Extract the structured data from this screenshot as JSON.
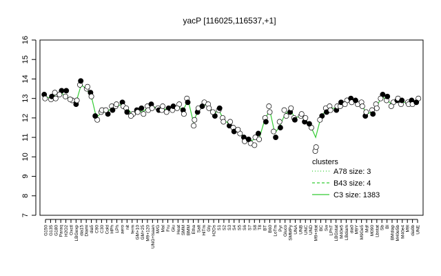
{
  "chart_data": {
    "type": "line",
    "title": "yacP [116025,116537,+1]",
    "xlabel": "",
    "ylabel": "",
    "ylim": [
      7,
      16
    ],
    "yticks": [
      7,
      8,
      9,
      10,
      11,
      12,
      13,
      14,
      15,
      16
    ],
    "x_tick_labels": [
      "G150",
      "G135",
      "G180",
      "Paraq",
      "H2O2",
      "Oxctl",
      "LBGexp",
      "dia15",
      "Diami",
      "dia5",
      "C90",
      "C30",
      "Cold",
      "HPh",
      "LPh",
      "aero",
      "nit",
      "ferm",
      "GM+10",
      "GM+25",
      "M9+120",
      "UNG+Isaan",
      "M/G",
      "Mal",
      "Fru",
      "Glu",
      "Heat",
      "SMM",
      "BMM",
      "Etha",
      "Salt",
      "HiTm",
      "Gly",
      "H2Os",
      "S1",
      "S2",
      "S3",
      "S4",
      "S5",
      "S6",
      "S7",
      "S8",
      "T8",
      "BT",
      "B60",
      "LoTm",
      "Pyr",
      "Gluco",
      "SMMPy",
      "UNA",
      "UNB",
      "UNC",
      "UND",
      "M9+stat",
      "BC",
      "Sw",
      "LPhT",
      "LBGstat",
      "M40e5",
      "LBdiam",
      "dia0",
      "M9Y",
      "M9Ge5",
      "Mdf",
      "M090",
      "Lbstat",
      "Sb",
      "Bl",
      "BMdiap",
      "M40e5b",
      "M40e4",
      "M9l",
      "dia0b",
      "UNE"
    ],
    "series": [
      {
        "name": "A78 size: 3",
        "style": "dotted"
      },
      {
        "name": "B43 size: 4",
        "style": "dashed"
      },
      {
        "name": "C3 size: 1383",
        "style": "solid",
        "values": [
          13.1,
          13.0,
          13.2,
          13.3,
          13.1,
          12.9,
          12.8,
          13.7,
          13.5,
          13.1,
          12.0,
          12.3,
          12.3,
          12.5,
          12.6,
          12.7,
          12.5,
          12.2,
          12.4,
          12.3,
          12.5,
          12.6,
          12.5,
          12.4,
          12.5,
          12.4,
          12.6,
          12.4,
          12.9,
          11.8,
          12.4,
          12.7,
          12.6,
          12.2,
          12.4,
          11.9,
          11.7,
          11.5,
          11.3,
          11.0,
          10.8,
          10.9,
          11.0,
          11.9,
          12.4,
          11.2,
          11.6,
          12.2,
          12.4,
          12.0,
          12.1,
          11.9,
          11.6,
          11.0,
          12.0,
          12.4,
          12.5,
          12.5,
          12.7,
          12.8,
          12.9,
          12.8,
          12.7,
          12.2,
          12.3,
          12.6,
          13.1,
          12.9,
          12.7,
          12.9,
          12.8,
          12.8,
          12.8,
          12.9
        ]
      }
    ],
    "points": [
      [
        0,
        13.2
      ],
      [
        0,
        13.0
      ],
      [
        1,
        12.95
      ],
      [
        1,
        13.1
      ],
      [
        2,
        13.3
      ],
      [
        2,
        13.0
      ],
      [
        3,
        13.4
      ],
      [
        3,
        13.2
      ],
      [
        4,
        13.1
      ],
      [
        4,
        13.4
      ],
      [
        5,
        12.9
      ],
      [
        5,
        12.95
      ],
      [
        6,
        12.7
      ],
      [
        6,
        12.9
      ],
      [
        7,
        13.7
      ],
      [
        7,
        13.9
      ],
      [
        8,
        13.5
      ],
      [
        8,
        13.6
      ],
      [
        9,
        13.3
      ],
      [
        9,
        13.1
      ],
      [
        10,
        11.9
      ],
      [
        10,
        12.1
      ],
      [
        11,
        12.3
      ],
      [
        11,
        12.4
      ],
      [
        12,
        12.2
      ],
      [
        12,
        12.4
      ],
      [
        13,
        12.6
      ],
      [
        13,
        12.4
      ],
      [
        14,
        12.6
      ],
      [
        14,
        12.7
      ],
      [
        15,
        12.8
      ],
      [
        15,
        12.6
      ],
      [
        16,
        12.5
      ],
      [
        16,
        12.3
      ],
      [
        17,
        12.2
      ],
      [
        17,
        12.1
      ],
      [
        18,
        12.4
      ],
      [
        18,
        12.3
      ],
      [
        19,
        12.2
      ],
      [
        19,
        12.5
      ],
      [
        20,
        12.6
      ],
      [
        20,
        12.4
      ],
      [
        21,
        12.7
      ],
      [
        21,
        12.5
      ],
      [
        22,
        12.5
      ],
      [
        22,
        12.4
      ],
      [
        23,
        12.4
      ],
      [
        23,
        12.6
      ],
      [
        24,
        12.5
      ],
      [
        24,
        12.3
      ],
      [
        25,
        12.4
      ],
      [
        25,
        12.6
      ],
      [
        26,
        12.7
      ],
      [
        26,
        12.5
      ],
      [
        27,
        12.4
      ],
      [
        27,
        12.2
      ],
      [
        28,
        13.0
      ],
      [
        28,
        12.8
      ],
      [
        29,
        11.6
      ],
      [
        29,
        11.9
      ],
      [
        30,
        12.3
      ],
      [
        30,
        12.5
      ],
      [
        31,
        12.8
      ],
      [
        31,
        12.6
      ],
      [
        32,
        12.7
      ],
      [
        32,
        12.5
      ],
      [
        33,
        12.1
      ],
      [
        33,
        12.3
      ],
      [
        34,
        12.4
      ],
      [
        34,
        12.5
      ],
      [
        35,
        12.0
      ],
      [
        35,
        11.8
      ],
      [
        36,
        11.6
      ],
      [
        36,
        11.8
      ],
      [
        37,
        11.5
      ],
      [
        37,
        11.3
      ],
      [
        38,
        11.2
      ],
      [
        38,
        11.4
      ],
      [
        39,
        11.0
      ],
      [
        39,
        10.8
      ],
      [
        40,
        10.7
      ],
      [
        40,
        10.9
      ],
      [
        41,
        10.6
      ],
      [
        41,
        11.0
      ],
      [
        42,
        11.2
      ],
      [
        42,
        10.9
      ],
      [
        43,
        12.0
      ],
      [
        43,
        11.8
      ],
      [
        44,
        12.6
      ],
      [
        44,
        12.3
      ],
      [
        45,
        11.0
      ],
      [
        45,
        11.3
      ],
      [
        46,
        11.8
      ],
      [
        46,
        11.5
      ],
      [
        47,
        12.1
      ],
      [
        47,
        12.4
      ],
      [
        48,
        12.3
      ],
      [
        48,
        12.5
      ],
      [
        49,
        12.0
      ],
      [
        49,
        11.9
      ],
      [
        50,
        12.1
      ],
      [
        50,
        12.2
      ],
      [
        51,
        11.8
      ],
      [
        51,
        12.0
      ],
      [
        52,
        11.5
      ],
      [
        52,
        11.7
      ],
      [
        53,
        10.3
      ],
      [
        53,
        10.5
      ],
      [
        54,
        12.1
      ],
      [
        54,
        11.9
      ],
      [
        55,
        12.5
      ],
      [
        55,
        12.3
      ],
      [
        56,
        12.6
      ],
      [
        56,
        12.4
      ],
      [
        57,
        12.4
      ],
      [
        57,
        12.6
      ],
      [
        58,
        12.6
      ],
      [
        58,
        12.8
      ],
      [
        59,
        12.9
      ],
      [
        59,
        12.7
      ],
      [
        60,
        13.0
      ],
      [
        60,
        12.8
      ],
      [
        61,
        12.7
      ],
      [
        61,
        12.9
      ],
      [
        62,
        12.8
      ],
      [
        62,
        12.6
      ],
      [
        63,
        12.1
      ],
      [
        63,
        12.3
      ],
      [
        64,
        12.4
      ],
      [
        64,
        12.2
      ],
      [
        65,
        12.7
      ],
      [
        65,
        12.5
      ],
      [
        66,
        13.2
      ],
      [
        66,
        13.0
      ],
      [
        67,
        12.9
      ],
      [
        67,
        13.1
      ],
      [
        68,
        12.8
      ],
      [
        68,
        12.6
      ],
      [
        69,
        12.9
      ],
      [
        69,
        13.0
      ],
      [
        70,
        12.7
      ],
      [
        70,
        12.9
      ],
      [
        71,
        12.8
      ],
      [
        71,
        12.7
      ],
      [
        72,
        12.9
      ],
      [
        72,
        12.7
      ],
      [
        73,
        13.0
      ],
      [
        73,
        12.8
      ]
    ],
    "grid": false,
    "legend": {
      "title": "clusters",
      "position": "bottom-right"
    }
  }
}
